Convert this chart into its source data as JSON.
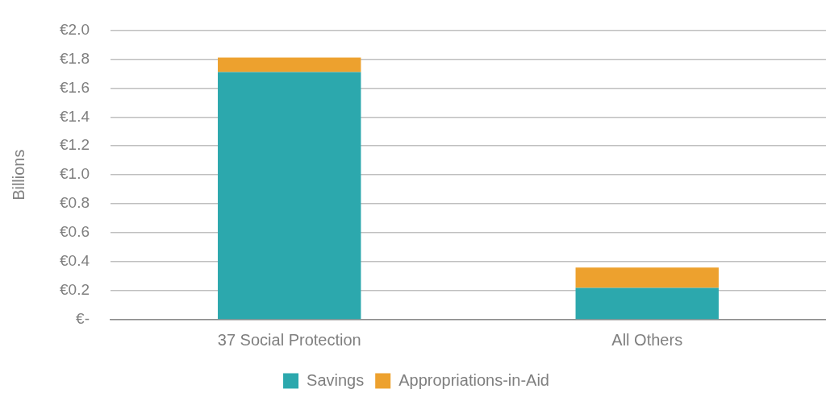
{
  "chart_data": {
    "type": "bar",
    "ylabel": "Billions",
    "categories": [
      "37 Social Protection",
      "All Others"
    ],
    "series": [
      {
        "name": "Savings",
        "color": "#2ca8ad",
        "values": [
          1.71,
          0.22
        ]
      },
      {
        "name": "Appropriations-in-Aid",
        "color": "#eda12e",
        "values": [
          0.1,
          0.14
        ]
      }
    ],
    "stacked": true,
    "ylim": [
      0,
      2.0
    ],
    "yticks": [
      {
        "value": 0,
        "label": "€-"
      },
      {
        "value": 0.2,
        "label": "€0.2"
      },
      {
        "value": 0.4,
        "label": "€0.4"
      },
      {
        "value": 0.6,
        "label": "€0.6"
      },
      {
        "value": 0.8,
        "label": "€0.8"
      },
      {
        "value": 1.0,
        "label": "€1.0"
      },
      {
        "value": 1.2,
        "label": "€1.2"
      },
      {
        "value": 1.4,
        "label": "€1.4"
      },
      {
        "value": 1.6,
        "label": "€1.6"
      },
      {
        "value": 1.8,
        "label": "€1.8"
      },
      {
        "value": 2.0,
        "label": "€2.0"
      }
    ],
    "grid": "y",
    "legend": "bottom"
  }
}
